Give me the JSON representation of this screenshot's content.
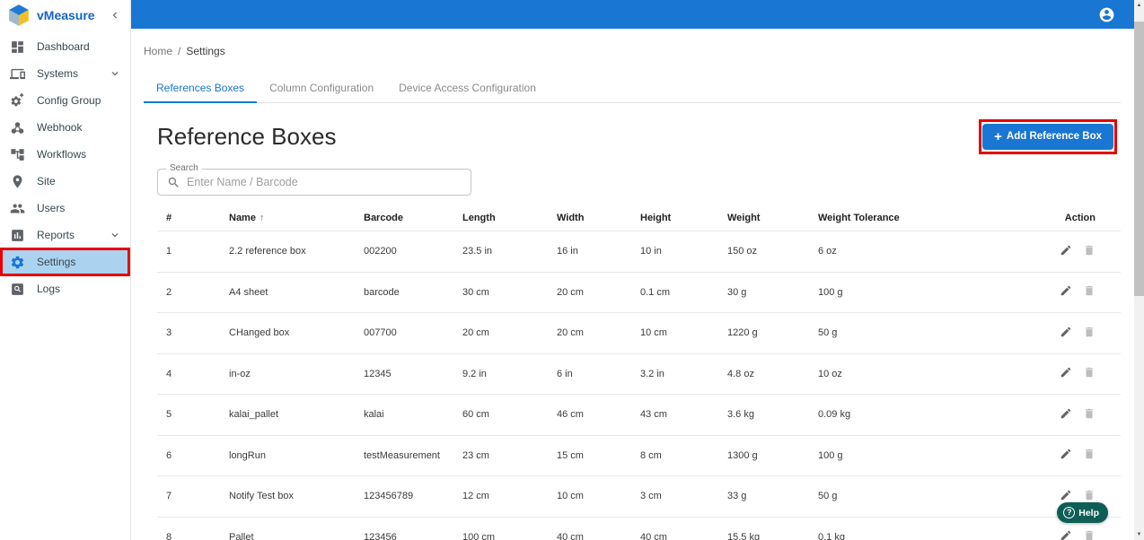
{
  "app": {
    "name": "vMeasure"
  },
  "sidebar": {
    "items": [
      {
        "label": "Dashboard",
        "icon": "dashboard-icon",
        "expandable": false,
        "active": false,
        "annotated": false
      },
      {
        "label": "Systems",
        "icon": "systems-icon",
        "expandable": true,
        "active": false,
        "annotated": false
      },
      {
        "label": "Config Group",
        "icon": "config-group-icon",
        "expandable": false,
        "active": false,
        "annotated": false
      },
      {
        "label": "Webhook",
        "icon": "webhook-icon",
        "expandable": false,
        "active": false,
        "annotated": false
      },
      {
        "label": "Workflows",
        "icon": "workflows-icon",
        "expandable": false,
        "active": false,
        "annotated": false
      },
      {
        "label": "Site",
        "icon": "site-icon",
        "expandable": false,
        "active": false,
        "annotated": false
      },
      {
        "label": "Users",
        "icon": "users-icon",
        "expandable": false,
        "active": false,
        "annotated": false
      },
      {
        "label": "Reports",
        "icon": "reports-icon",
        "expandable": true,
        "active": false,
        "annotated": false
      },
      {
        "label": "Settings",
        "icon": "settings-icon",
        "expandable": false,
        "active": true,
        "annotated": true
      },
      {
        "label": "Logs",
        "icon": "logs-icon",
        "expandable": false,
        "active": false,
        "annotated": false
      }
    ]
  },
  "breadcrumb": {
    "home": "Home",
    "separator": "/",
    "current": "Settings"
  },
  "tabs": [
    {
      "label": "References Boxes",
      "active": true
    },
    {
      "label": "Column Configuration",
      "active": false
    },
    {
      "label": "Device Access Configuration",
      "active": false
    }
  ],
  "page": {
    "title": "Reference Boxes"
  },
  "add_button": {
    "plus": "+",
    "label": "Add Reference Box"
  },
  "search": {
    "label": "Search",
    "placeholder": "Enter Name / Barcode",
    "value": ""
  },
  "table": {
    "columns": [
      "#",
      "Name",
      "Barcode",
      "Length",
      "Width",
      "Height",
      "Weight",
      "Weight Tolerance",
      "Action"
    ],
    "sort_column": "Name",
    "sort_arrow": "↑",
    "rows": [
      [
        "1",
        "2.2 reference box",
        "002200",
        "23.5 in",
        "16 in",
        "10 in",
        "150 oz",
        "6 oz"
      ],
      [
        "2",
        "A4 sheet",
        "barcode",
        "30 cm",
        "20 cm",
        "0.1 cm",
        "30 g",
        "100 g"
      ],
      [
        "3",
        "CHanged box",
        "007700",
        "20 cm",
        "20 cm",
        "10 cm",
        "1220 g",
        "50 g"
      ],
      [
        "4",
        "in-oz",
        "12345",
        "9.2 in",
        "6 in",
        "3.2 in",
        "4.8 oz",
        "10 oz"
      ],
      [
        "5",
        "kalai_pallet",
        "kalai",
        "60 cm",
        "46 cm",
        "43 cm",
        "3.6 kg",
        "0.09 kg"
      ],
      [
        "6",
        "longRun",
        "testMeasurement",
        "23 cm",
        "15 cm",
        "8 cm",
        "1300 g",
        "100 g"
      ],
      [
        "7",
        "Notify Test box",
        "123456789",
        "12 cm",
        "10 cm",
        "3 cm",
        "33 g",
        "50 g"
      ],
      [
        "8",
        "Pallet",
        "123456",
        "100 cm",
        "40 cm",
        "40 cm",
        "15.5 kg",
        "0.1 kg"
      ]
    ]
  },
  "help": {
    "icon_glyph": "?",
    "label": "Help"
  },
  "colors": {
    "primary": "#1976d2",
    "sidebar_active_bg": "#abd3f0",
    "annotation_red": "#e60000",
    "help_teal": "#0f5e56"
  }
}
